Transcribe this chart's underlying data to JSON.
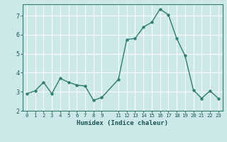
{
  "x": [
    0,
    1,
    2,
    3,
    4,
    5,
    6,
    7,
    8,
    9,
    11,
    12,
    13,
    14,
    15,
    16,
    17,
    18,
    19,
    20,
    21,
    22,
    23
  ],
  "y": [
    2.9,
    3.05,
    3.5,
    2.9,
    3.7,
    3.5,
    3.35,
    3.3,
    2.55,
    2.7,
    3.65,
    5.75,
    5.8,
    6.4,
    6.65,
    7.35,
    7.05,
    5.8,
    4.9,
    3.1,
    2.65,
    3.05,
    2.65
  ],
  "line_color": "#2e7d6e",
  "marker": "o",
  "marker_size": 2.5,
  "bg_color": "#cde8e8",
  "grid_color": "#ffffff",
  "xlabel": "Humidex (Indice chaleur)",
  "xlim": [
    -0.5,
    23.5
  ],
  "ylim": [
    2.0,
    7.6
  ],
  "yticks": [
    2,
    3,
    4,
    5,
    6,
    7
  ],
  "xticks": [
    0,
    1,
    2,
    3,
    4,
    5,
    6,
    7,
    8,
    9,
    11,
    12,
    13,
    14,
    15,
    16,
    17,
    18,
    19,
    20,
    21,
    22,
    23
  ],
  "xtick_labels": [
    "0",
    "1",
    "2",
    "3",
    "4",
    "5",
    "6",
    "7",
    "8",
    "9",
    "11",
    "12",
    "13",
    "14",
    "15",
    "16",
    "17",
    "18",
    "19",
    "20",
    "21",
    "22",
    "23"
  ]
}
